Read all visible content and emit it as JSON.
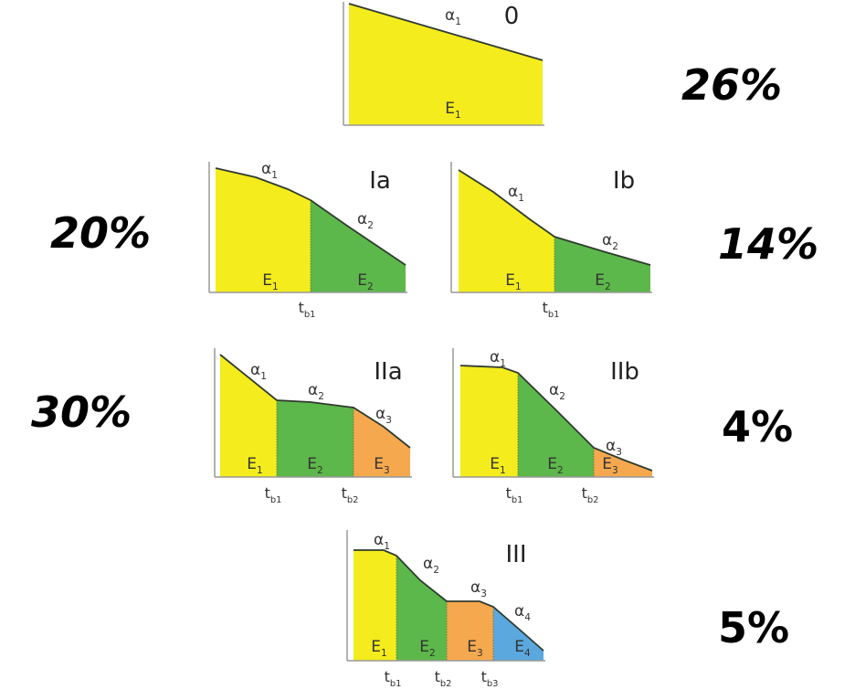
{
  "colors": {
    "E1": "#f4ec1c",
    "E2": "#5cb84a",
    "E3": "#f6a84e",
    "E4": "#5aa8de",
    "axis": "#999999",
    "curve": "#2f3b2f"
  },
  "panels": [
    {
      "id": "0",
      "label": "0",
      "percent": "26%",
      "segments": [
        {
          "energy": "E1",
          "color_key": "E1",
          "slope": "α1"
        }
      ],
      "breaks": []
    },
    {
      "id": "Ia",
      "label": "Ia",
      "percent": "20%",
      "segments": [
        {
          "energy": "E1",
          "color_key": "E1",
          "slope": "α1"
        },
        {
          "energy": "E2",
          "color_key": "E2",
          "slope": "α2"
        }
      ],
      "breaks": [
        "tb1"
      ]
    },
    {
      "id": "Ib",
      "label": "Ib",
      "percent": "14%",
      "segments": [
        {
          "energy": "E1",
          "color_key": "E1",
          "slope": "α1"
        },
        {
          "energy": "E2",
          "color_key": "E2",
          "slope": "α2"
        }
      ],
      "breaks": [
        "tb1"
      ]
    },
    {
      "id": "IIa",
      "label": "IIa",
      "percent": "30%",
      "segments": [
        {
          "energy": "E1",
          "color_key": "E1",
          "slope": "α1"
        },
        {
          "energy": "E2",
          "color_key": "E2",
          "slope": "α2"
        },
        {
          "energy": "E3",
          "color_key": "E3",
          "slope": "α3"
        }
      ],
      "breaks": [
        "tb1",
        "tb2"
      ]
    },
    {
      "id": "IIb",
      "label": "IIb",
      "percent": "4%",
      "segments": [
        {
          "energy": "E1",
          "color_key": "E1",
          "slope": "α1"
        },
        {
          "energy": "E2",
          "color_key": "E2",
          "slope": "α2"
        },
        {
          "energy": "E3",
          "color_key": "E3",
          "slope": "α3"
        }
      ],
      "breaks": [
        "tb1",
        "tb2"
      ]
    },
    {
      "id": "III",
      "label": "III",
      "percent": "5%",
      "segments": [
        {
          "energy": "E1",
          "color_key": "E1",
          "slope": "α1"
        },
        {
          "energy": "E2",
          "color_key": "E2",
          "slope": "α2"
        },
        {
          "energy": "E3",
          "color_key": "E3",
          "slope": "α3"
        },
        {
          "energy": "E4",
          "color_key": "E4",
          "slope": "α4"
        }
      ],
      "breaks": [
        "tb1",
        "tb2",
        "tb3"
      ]
    }
  ]
}
